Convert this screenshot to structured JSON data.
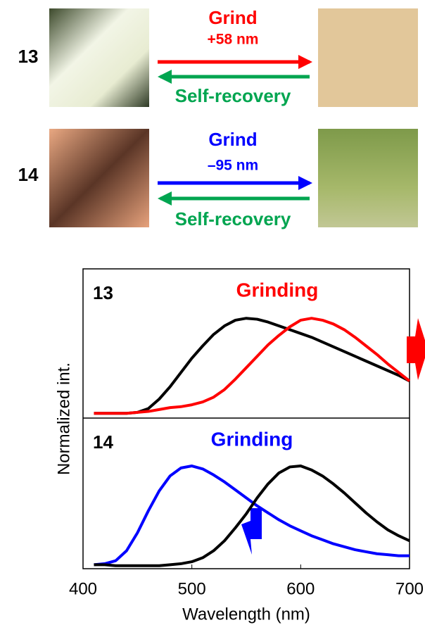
{
  "scheme": {
    "rows": [
      {
        "label": "13",
        "forward": "Grind",
        "shift": "+58 nm",
        "backward": "Self-recovery"
      },
      {
        "label": "14",
        "forward": "Grind",
        "shift": "–95 nm",
        "backward": "Self-recovery"
      }
    ]
  },
  "chart_data": [
    {
      "type": "line",
      "label": "13",
      "annotation": "Grinding",
      "ylabel": "Normalized int.",
      "x": [
        410,
        420,
        430,
        440,
        450,
        460,
        470,
        480,
        490,
        500,
        510,
        520,
        530,
        540,
        550,
        560,
        570,
        580,
        590,
        600,
        610,
        620,
        630,
        640,
        650,
        660,
        670,
        680,
        690,
        700
      ],
      "xlim": [
        400,
        700
      ],
      "ylim": [
        -0.05,
        1.52
      ],
      "series": [
        {
          "color": "#000000",
          "values": [
            0,
            0,
            0,
            0,
            0.01,
            0.05,
            0.15,
            0.28,
            0.43,
            0.58,
            0.71,
            0.83,
            0.92,
            0.98,
            1.0,
            0.99,
            0.96,
            0.92,
            0.88,
            0.84,
            0.8,
            0.75,
            0.7,
            0.65,
            0.6,
            0.55,
            0.5,
            0.45,
            0.4,
            0.34
          ]
        },
        {
          "color": "#ff0000",
          "values": [
            0,
            0,
            0,
            0,
            0.01,
            0.02,
            0.04,
            0.06,
            0.07,
            0.09,
            0.12,
            0.17,
            0.25,
            0.36,
            0.48,
            0.6,
            0.72,
            0.82,
            0.91,
            0.98,
            1.0,
            0.98,
            0.94,
            0.88,
            0.8,
            0.71,
            0.62,
            0.52,
            0.43,
            0.34
          ]
        }
      ]
    },
    {
      "type": "line",
      "label": "14",
      "annotation": "Grinding",
      "xlabel": "Wavelength (nm)",
      "x": [
        410,
        420,
        430,
        440,
        450,
        460,
        470,
        480,
        490,
        500,
        510,
        520,
        530,
        540,
        550,
        560,
        570,
        580,
        590,
        600,
        610,
        620,
        630,
        640,
        650,
        660,
        670,
        680,
        690,
        700
      ],
      "xlim": [
        400,
        700
      ],
      "ylim": [
        -0.03,
        1.48
      ],
      "xticks": [
        400,
        500,
        600,
        700
      ],
      "series": [
        {
          "color": "#0000ff",
          "values": [
            0.01,
            0.02,
            0.05,
            0.15,
            0.33,
            0.55,
            0.75,
            0.9,
            0.98,
            1.0,
            0.97,
            0.91,
            0.84,
            0.76,
            0.68,
            0.6,
            0.53,
            0.46,
            0.4,
            0.35,
            0.3,
            0.26,
            0.22,
            0.19,
            0.16,
            0.14,
            0.12,
            0.11,
            0.1,
            0.1
          ]
        },
        {
          "color": "#000000",
          "values": [
            0.01,
            0.01,
            0.0,
            0.0,
            0.0,
            0.0,
            0.0,
            0.01,
            0.02,
            0.04,
            0.08,
            0.15,
            0.25,
            0.38,
            0.52,
            0.68,
            0.82,
            0.93,
            0.99,
            1.0,
            0.96,
            0.9,
            0.82,
            0.73,
            0.63,
            0.53,
            0.44,
            0.36,
            0.3,
            0.25
          ]
        }
      ]
    }
  ]
}
